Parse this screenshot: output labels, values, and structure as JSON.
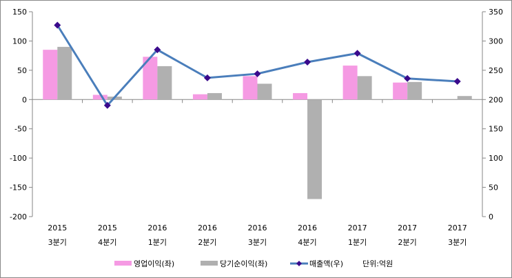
{
  "chart_data": {
    "type": "bar",
    "categories": [
      [
        "2015",
        "3분기"
      ],
      [
        "2015",
        "4분기"
      ],
      [
        "2016",
        "1분기"
      ],
      [
        "2016",
        "2분기"
      ],
      [
        "2016",
        "3분기"
      ],
      [
        "2016",
        "4분기"
      ],
      [
        "2017",
        "1분기"
      ],
      [
        "2017",
        "2분기"
      ],
      [
        "2017",
        "3분기"
      ]
    ],
    "series": [
      {
        "name": "영업이익(좌)",
        "type": "bar",
        "axis": "left",
        "color": "#f59ae3",
        "values": [
          85,
          8,
          73,
          9,
          40,
          11,
          58,
          29,
          0
        ]
      },
      {
        "name": "당기순이익(좌)",
        "type": "bar",
        "axis": "left",
        "color": "#b0b0b0",
        "values": [
          90,
          5,
          57,
          11,
          27,
          -170,
          40,
          30,
          6
        ]
      },
      {
        "name": "매출액(우)",
        "type": "line",
        "axis": "right",
        "color": "#4a7ebb",
        "marker_color": "#3a0a8c",
        "values": [
          327,
          190,
          285,
          237,
          244,
          264,
          279,
          236,
          231
        ]
      }
    ],
    "left_axis": {
      "range": [
        -200,
        150
      ],
      "ticks": [
        150,
        100,
        50,
        0,
        -50,
        -100,
        -150,
        -200
      ]
    },
    "right_axis": {
      "range": [
        0,
        350
      ],
      "ticks": [
        350,
        300,
        250,
        200,
        150,
        100,
        50,
        0
      ]
    },
    "unit_note": "단위:억원",
    "grid": false,
    "legend": "bottom"
  }
}
